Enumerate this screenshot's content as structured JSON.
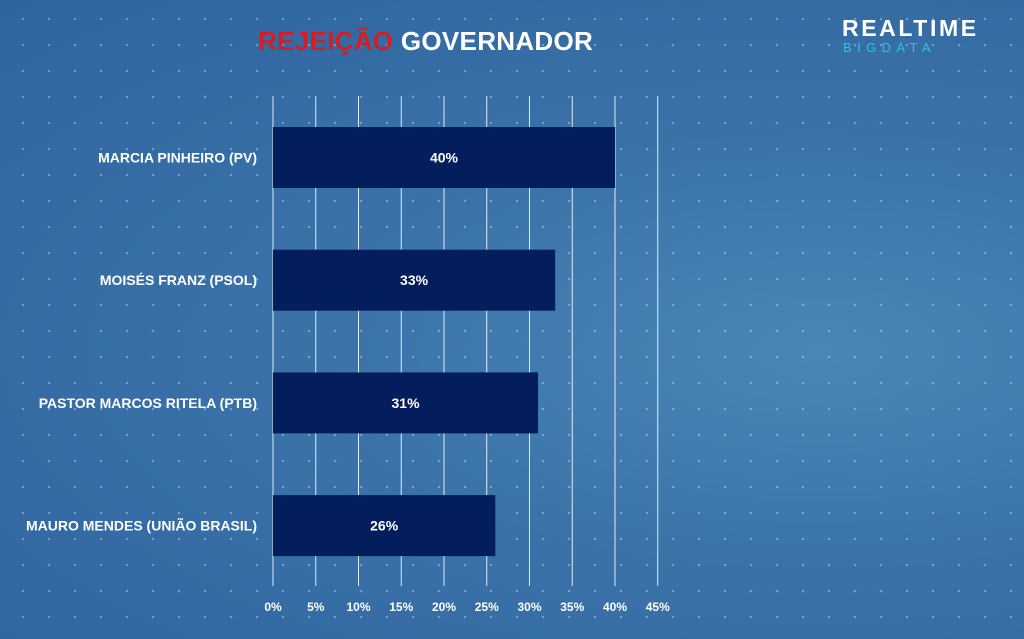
{
  "title": {
    "accent": "REJEIÇÃO",
    "rest": "GOVERNADOR"
  },
  "logo": {
    "line1": "REALTIME",
    "line2": "BIGDATA"
  },
  "colors": {
    "bar": "#041d5c",
    "accent": "#d21f26",
    "logo_secondary": "#22c8e8"
  },
  "chart_data": {
    "type": "bar",
    "orientation": "horizontal",
    "title": "REJEIÇÃO GOVERNADOR",
    "categories": [
      "MARCIA PINHEIRO (PV)",
      "MOISÉS FRANZ (PSOL)",
      "PASTOR MARCOS RITELA (PTB)",
      "MAURO MENDES (UNIÃO BRASIL)"
    ],
    "values": [
      40,
      33,
      31,
      26
    ],
    "value_labels": [
      "40%",
      "33%",
      "31%",
      "26%"
    ],
    "xlim": [
      0,
      45
    ],
    "ticks": [
      "0%",
      "5%",
      "10%",
      "15%",
      "20%",
      "25%",
      "30%",
      "35%",
      "40%",
      "45%"
    ],
    "grid": true
  }
}
